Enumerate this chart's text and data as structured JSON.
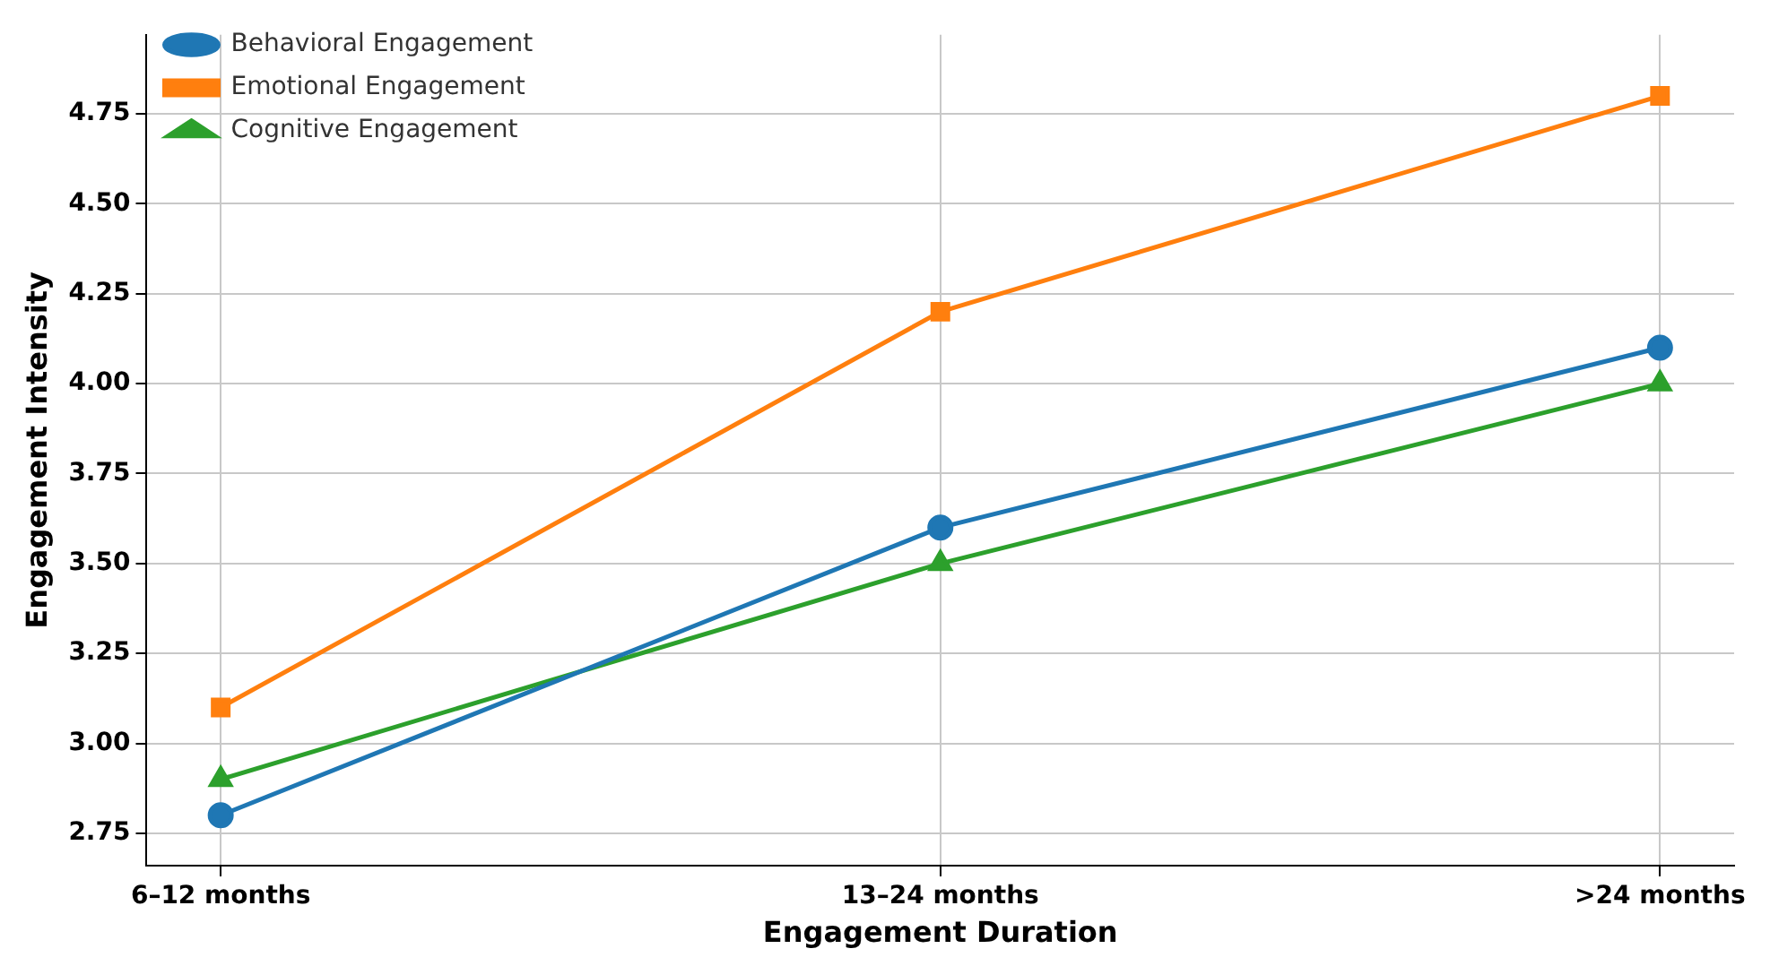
{
  "chart_data": {
    "type": "line",
    "xlabel": "Engagement Duration",
    "ylabel": "Engagement Intensity",
    "categories": [
      "6–12 months",
      "13–24 months",
      ">24 months"
    ],
    "series": [
      {
        "name": "Behavioral Engagement",
        "color": "#1f77b4",
        "marker": "circle",
        "values": [
          2.8,
          3.6,
          4.1
        ]
      },
      {
        "name": "Emotional Engagement",
        "color": "#ff7f0e",
        "marker": "square",
        "values": [
          3.1,
          4.2,
          4.8
        ]
      },
      {
        "name": "Cognitive Engagement",
        "color": "#2ca02c",
        "marker": "triangle",
        "values": [
          2.9,
          3.5,
          4.0
        ]
      }
    ],
    "ylim": [
      2.66,
      4.97
    ],
    "yticks": [
      {
        "value": 2.75,
        "label": "2.75"
      },
      {
        "value": 3.0,
        "label": "3.00"
      },
      {
        "value": 3.25,
        "label": "3.25"
      },
      {
        "value": 3.5,
        "label": "3.50"
      },
      {
        "value": 3.75,
        "label": "3.75"
      },
      {
        "value": 4.0,
        "label": "4.00"
      },
      {
        "value": 4.25,
        "label": "4.25"
      },
      {
        "value": 4.5,
        "label": "4.50"
      },
      {
        "value": 4.75,
        "label": "4.75"
      }
    ],
    "grid": true,
    "legend": "top left",
    "line_style": "solid"
  }
}
